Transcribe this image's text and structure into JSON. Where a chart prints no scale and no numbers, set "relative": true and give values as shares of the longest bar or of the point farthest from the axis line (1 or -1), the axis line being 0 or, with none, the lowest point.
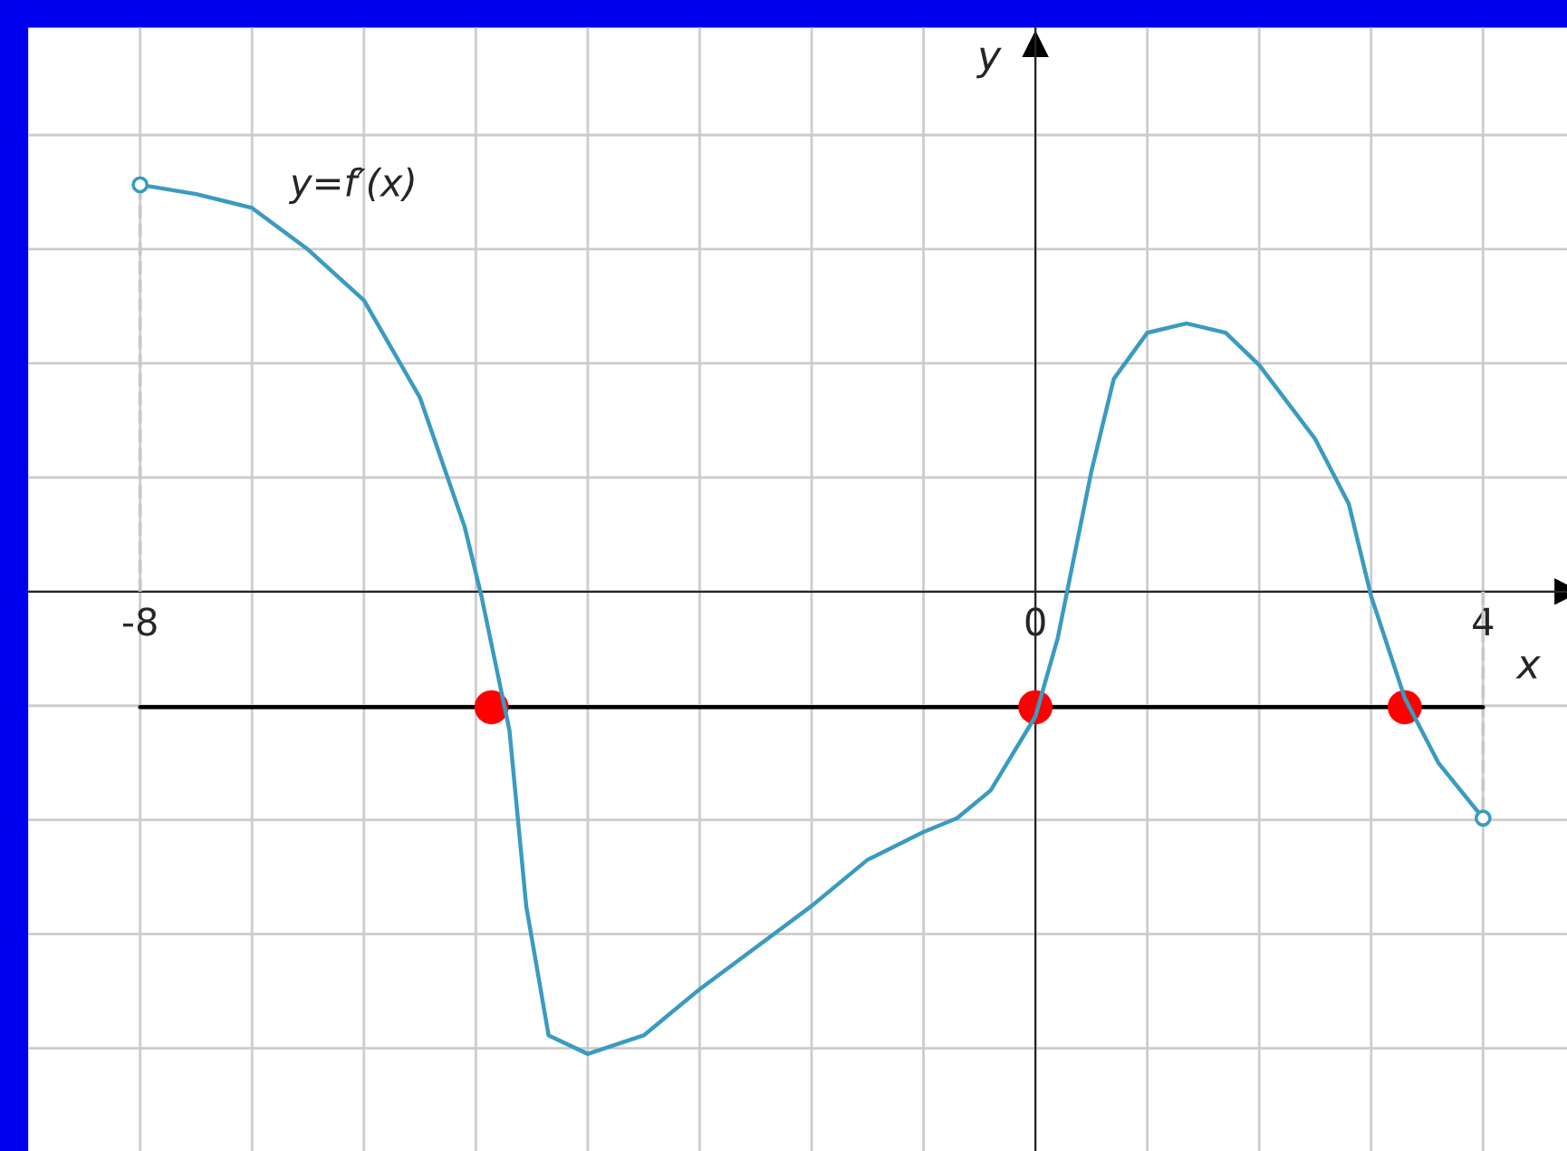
{
  "chart_data": {
    "type": "line",
    "xlabel": "x",
    "ylabel": "y",
    "relative": true,
    "annotations": [
      "y=f′(x)"
    ],
    "xlim": [
      -9,
      4.75
    ],
    "xticks": [
      {
        "value": -8,
        "label": "-8"
      },
      {
        "value": -7,
        "label": null
      },
      {
        "value": -6,
        "label": null
      },
      {
        "value": -5,
        "label": null
      },
      {
        "value": -4,
        "label": null
      },
      {
        "value": -3,
        "label": null
      },
      {
        "value": -2,
        "label": null
      },
      {
        "value": -1,
        "label": null
      },
      {
        "value": 0,
        "label": "0"
      },
      {
        "value": 1,
        "label": null
      },
      {
        "value": 2,
        "label": null
      },
      {
        "value": 3,
        "label": null
      },
      {
        "value": 4,
        "label": "4"
      }
    ],
    "grid": true,
    "series": [
      {
        "color": "#3a9bbf",
        "x": [
          -8,
          -7.5,
          -7,
          -6.5,
          -6,
          -5.5,
          -5.1,
          -4.95,
          -4.7,
          -4.55,
          -4.35,
          -4,
          -3.5,
          -3,
          -2,
          -1.5,
          -1,
          -0.7,
          -0.4,
          0,
          0.2,
          0.5,
          0.7,
          1,
          1.35,
          1.7,
          2,
          2.5,
          2.8,
          3,
          3.3,
          3.6,
          4
        ],
        "values": [
          0.88,
          0.86,
          0.83,
          0.74,
          0.63,
          0.42,
          0.14,
          -0.01,
          -0.3,
          -0.68,
          -0.96,
          -1,
          -0.96,
          -0.86,
          -0.68,
          -0.58,
          -0.52,
          -0.49,
          -0.43,
          -0.27,
          -0.1,
          0.26,
          0.46,
          0.56,
          0.58,
          0.56,
          0.49,
          0.33,
          0.19,
          -0.01,
          -0.23,
          -0.37,
          -0.49
        ]
      },
      {
        "type": "scatter",
        "marker": "circle",
        "color": "#3a9bbf",
        "x": [
          -8,
          4
        ],
        "values": [
          0.88,
          -0.49
        ]
      },
      {
        "line_style": "dashed",
        "color": "#c8c8c8",
        "x": [
          -8,
          -8
        ],
        "values": [
          0,
          0.88
        ]
      },
      {
        "line_style": "dashed",
        "color": "#c8c8c8",
        "x": [
          4,
          4
        ],
        "values": [
          0,
          -0.49
        ]
      },
      {
        "color": "#000000",
        "x": [
          -8,
          4
        ],
        "values": [
          -0.25,
          -0.25
        ]
      },
      {
        "type": "scatter",
        "marker": "circle",
        "color": "#ff0000",
        "x": [
          -4.86,
          0,
          3.3
        ],
        "values": [
          -0.25,
          -0.25,
          -0.25
        ]
      }
    ]
  }
}
